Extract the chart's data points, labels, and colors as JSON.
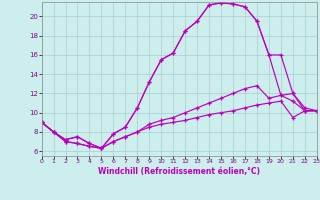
{
  "xlabel": "Windchill (Refroidissement éolien,°C)",
  "background_color": "#cceeed",
  "grid_color": "#aacccc",
  "line_color": "#bb00bb",
  "xlim": [
    0,
    23
  ],
  "ylim": [
    5.5,
    21.5
  ],
  "xticks": [
    0,
    1,
    2,
    3,
    4,
    5,
    6,
    7,
    8,
    9,
    10,
    11,
    12,
    13,
    14,
    15,
    16,
    17,
    18,
    19,
    20,
    21,
    22,
    23
  ],
  "yticks": [
    6,
    8,
    10,
    12,
    14,
    16,
    18,
    20
  ],
  "hours": [
    0,
    1,
    2,
    3,
    4,
    5,
    6,
    7,
    8,
    9,
    10,
    11,
    12,
    13,
    14,
    15,
    16,
    17,
    18,
    19,
    20,
    21,
    22,
    23
  ],
  "line1": [
    9.0,
    8.0,
    7.2,
    7.5,
    6.8,
    6.3,
    7.8,
    8.5,
    10.5,
    13.2,
    15.5,
    16.2,
    18.5,
    19.5,
    21.2,
    21.4,
    21.3,
    21.0,
    19.5,
    16.0,
    16.0,
    12.0,
    10.5,
    10.2
  ],
  "line2": [
    9.0,
    8.0,
    7.2,
    7.5,
    6.8,
    6.3,
    7.8,
    8.5,
    10.5,
    13.2,
    15.5,
    16.2,
    18.5,
    19.5,
    21.2,
    21.4,
    21.3,
    21.0,
    19.5,
    16.0,
    11.8,
    11.2,
    10.2,
    10.2
  ],
  "line3": [
    9.0,
    8.0,
    7.0,
    6.8,
    6.5,
    6.3,
    7.0,
    7.5,
    8.0,
    8.8,
    9.2,
    9.5,
    10.0,
    10.5,
    11.0,
    11.5,
    12.0,
    12.5,
    12.8,
    11.5,
    11.8,
    12.0,
    10.2,
    10.2
  ],
  "line4": [
    9.0,
    8.0,
    7.0,
    6.8,
    6.5,
    6.3,
    7.0,
    7.5,
    8.0,
    8.5,
    8.8,
    9.0,
    9.2,
    9.5,
    9.8,
    10.0,
    10.2,
    10.5,
    10.8,
    11.0,
    11.2,
    9.5,
    10.2,
    10.2
  ]
}
